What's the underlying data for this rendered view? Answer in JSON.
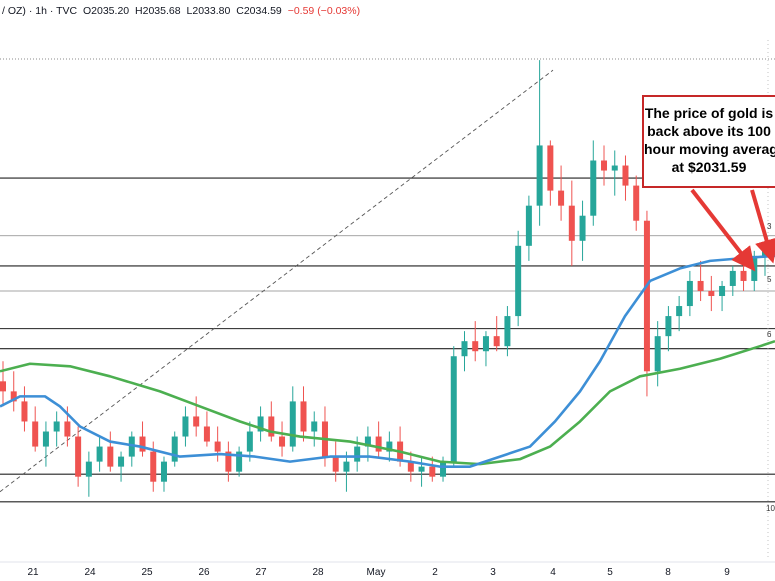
{
  "header": {
    "symbol": "/ OZ) · 1h · TVC",
    "open": "O2035.20",
    "high": "H2035.68",
    "low": "L2033.80",
    "close": "C2034.59",
    "change": "−0.59 (−0.03%)"
  },
  "annotation": {
    "lines": [
      "The price of gold is",
      "back above its 100",
      "hour moving averag",
      "at $2031.59"
    ]
  },
  "fib_labels": [
    "3",
    "5",
    "6",
    "10"
  ],
  "colors": {
    "up": "#26a69a",
    "down": "#ef5350",
    "ma100": "#3d8fd6",
    "ma200": "#4caf50",
    "callout_border": "#c62828",
    "arrow": "#e53935"
  },
  "chart_data": {
    "type": "candlestick",
    "title": "",
    "x_ticks": [
      "21",
      "24",
      "25",
      "26",
      "27",
      "28",
      "May",
      "2",
      "3",
      "4",
      "5",
      "8",
      "9"
    ],
    "y_range": [
      1973,
      2080
    ],
    "horizontal_levels": [
      2049.5,
      2038,
      2032,
      2027,
      2019.5,
      2015.5,
      1990.5,
      1985
    ],
    "diagonal_trendline": {
      "from": [
        0,
        1987
      ],
      "to": [
        553,
        2071
      ]
    },
    "ma100_points": [
      [
        0,
        2004
      ],
      [
        20,
        2006
      ],
      [
        45,
        2006
      ],
      [
        60,
        2004
      ],
      [
        80,
        2000
      ],
      [
        110,
        1997
      ],
      [
        140,
        1996
      ],
      [
        180,
        1994
      ],
      [
        220,
        1994.5
      ],
      [
        255,
        1994
      ],
      [
        290,
        1993
      ],
      [
        330,
        1994
      ],
      [
        370,
        1994
      ],
      [
        410,
        1993
      ],
      [
        440,
        1992
      ],
      [
        470,
        1992
      ],
      [
        500,
        1994
      ],
      [
        530,
        1996
      ],
      [
        555,
        2001
      ],
      [
        580,
        2007
      ],
      [
        600,
        2013
      ],
      [
        625,
        2022
      ],
      [
        650,
        2029
      ],
      [
        680,
        2031.5
      ],
      [
        710,
        2033
      ],
      [
        740,
        2033.5
      ],
      [
        775,
        2034
      ]
    ],
    "ma200_points": [
      [
        0,
        2011
      ],
      [
        30,
        2012.5
      ],
      [
        70,
        2012
      ],
      [
        110,
        2010
      ],
      [
        160,
        2007
      ],
      [
        200,
        2004
      ],
      [
        240,
        2001
      ],
      [
        270,
        1999
      ],
      [
        300,
        1998
      ],
      [
        350,
        1997
      ],
      [
        400,
        1995
      ],
      [
        440,
        1993
      ],
      [
        480,
        1992.5
      ],
      [
        520,
        1993.5
      ],
      [
        550,
        1996
      ],
      [
        580,
        2001
      ],
      [
        610,
        2007
      ],
      [
        640,
        2010
      ],
      [
        680,
        2011.5
      ],
      [
        720,
        2013.5
      ],
      [
        760,
        2016
      ],
      [
        775,
        2017
      ]
    ],
    "candles_sampled_ohlc": [
      [
        2009,
        2013,
        2004,
        2007
      ],
      [
        2007,
        2011,
        2003,
        2005
      ],
      [
        2005,
        2008,
        1999,
        2001
      ],
      [
        2001,
        2004,
        1995,
        1996
      ],
      [
        1996,
        2001,
        1992,
        1999
      ],
      [
        1999,
        2003,
        1996,
        2001
      ],
      [
        2001,
        2004,
        1996,
        1998
      ],
      [
        1998,
        2000,
        1988,
        1990
      ],
      [
        1990,
        1995,
        1986,
        1993
      ],
      [
        1993,
        1998,
        1991,
        1996
      ],
      [
        1996,
        1999,
        1991,
        1992
      ],
      [
        1992,
        1995,
        1989,
        1994
      ],
      [
        1994,
        1999,
        1992,
        1998
      ],
      [
        1998,
        2001,
        1994,
        1995
      ],
      [
        1995,
        1997,
        1987,
        1989
      ],
      [
        1989,
        1994,
        1987,
        1993
      ],
      [
        1993,
        1999,
        1992,
        1998
      ],
      [
        1998,
        2004,
        1996,
        2002
      ],
      [
        2002,
        2006,
        1998,
        2000
      ],
      [
        2000,
        2003,
        1996,
        1997
      ],
      [
        1997,
        2000,
        1993,
        1995
      ],
      [
        1995,
        1997,
        1989,
        1991
      ],
      [
        1991,
        1996,
        1990,
        1995
      ],
      [
        1995,
        2001,
        1993,
        1999
      ],
      [
        1999,
        2004,
        1997,
        2002
      ],
      [
        2002,
        2005,
        1997,
        1998
      ],
      [
        1998,
        2001,
        1994,
        1996
      ],
      [
        1996,
        2008,
        1995,
        2005
      ],
      [
        2005,
        2008,
        1997,
        1999
      ],
      [
        1999,
        2003,
        1996,
        2001
      ],
      [
        2001,
        2004,
        1992,
        1994
      ],
      [
        1994,
        1997,
        1989,
        1991
      ],
      [
        1991,
        1995,
        1987,
        1993
      ],
      [
        1993,
        1998,
        1991,
        1996
      ],
      [
        1996,
        2000,
        1993,
        1998
      ],
      [
        1998,
        2001,
        1994,
        1995
      ],
      [
        1995,
        1999,
        1993,
        1997
      ],
      [
        1997,
        2000,
        1992,
        1993
      ],
      [
        1993,
        1995,
        1989,
        1991
      ],
      [
        1991,
        1994,
        1988,
        1992
      ],
      [
        1992,
        1994,
        1989,
        1990
      ],
      [
        1990,
        1994,
        1989,
        1993
      ],
      [
        1993,
        2016,
        1992,
        2014
      ],
      [
        2014,
        2019,
        2011,
        2017
      ],
      [
        2017,
        2021,
        2013,
        2015
      ],
      [
        2015,
        2019,
        2012,
        2018
      ],
      [
        2018,
        2022,
        2015,
        2016
      ],
      [
        2016,
        2024,
        2014,
        2022
      ],
      [
        2022,
        2039,
        2020,
        2036
      ],
      [
        2036,
        2046,
        2033,
        2044
      ],
      [
        2044,
        2073,
        2040,
        2056
      ],
      [
        2056,
        2057,
        2044,
        2047
      ],
      [
        2047,
        2052,
        2041,
        2044
      ],
      [
        2044,
        2049,
        2032,
        2037
      ],
      [
        2037,
        2045,
        2033,
        2042
      ],
      [
        2042,
        2057,
        2040,
        2053
      ],
      [
        2053,
        2056,
        2048,
        2051
      ],
      [
        2051,
        2055,
        2046,
        2052
      ],
      [
        2052,
        2054,
        2045,
        2048
      ],
      [
        2048,
        2050,
        2039,
        2041
      ],
      [
        2041,
        2043,
        2006,
        2011
      ],
      [
        2011,
        2021,
        2008,
        2018
      ],
      [
        2018,
        2024,
        2015,
        2022
      ],
      [
        2022,
        2026,
        2019,
        2024
      ],
      [
        2024,
        2031,
        2022,
        2029
      ],
      [
        2029,
        2033,
        2025,
        2027
      ],
      [
        2027,
        2030,
        2023,
        2026
      ],
      [
        2026,
        2029,
        2023,
        2028
      ],
      [
        2028,
        2032,
        2026,
        2031
      ],
      [
        2031,
        2034,
        2027,
        2029
      ],
      [
        2029,
        2035,
        2027,
        2034
      ],
      [
        2034,
        2037,
        2030,
        2035
      ]
    ]
  }
}
